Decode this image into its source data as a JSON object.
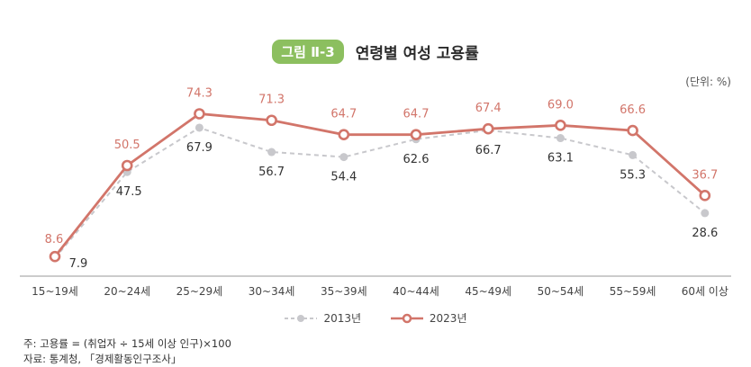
{
  "title": {
    "badge": "그림 Ⅱ-3",
    "text": "연령별 여성 고용률"
  },
  "unit_label": "(단위: %)",
  "chart_data": {
    "type": "line",
    "categories": [
      "15~19세",
      "20~24세",
      "25~29세",
      "30~34세",
      "35~39세",
      "40~44세",
      "45~49세",
      "50~54세",
      "55~59세",
      "60세 이상"
    ],
    "series": [
      {
        "name": "2013년",
        "values": [
          7.9,
          47.5,
          67.9,
          56.7,
          54.4,
          62.6,
          66.7,
          63.1,
          55.3,
          28.6
        ],
        "color": "#c8c8cc",
        "style": "dashed"
      },
      {
        "name": "2023년",
        "values": [
          8.6,
          50.5,
          74.3,
          71.3,
          64.7,
          64.7,
          67.4,
          69.0,
          66.6,
          36.7
        ],
        "color": "#d2756a",
        "style": "solid"
      }
    ],
    "ylim": [
      0,
      80
    ],
    "grid": false,
    "legend_position": "bottom"
  },
  "legend": {
    "s2013": "2013년",
    "s2023": "2023년"
  },
  "notes": {
    "line1": "주: 고용률 = (취업자 ÷ 15세 이상 인구)×100",
    "line2": "자료: 통계청, 「경제활동인구조사」"
  },
  "colors": {
    "accent_green": "#8cbf5f",
    "series_2023": "#d2756a",
    "series_2013": "#c8c8cc"
  }
}
